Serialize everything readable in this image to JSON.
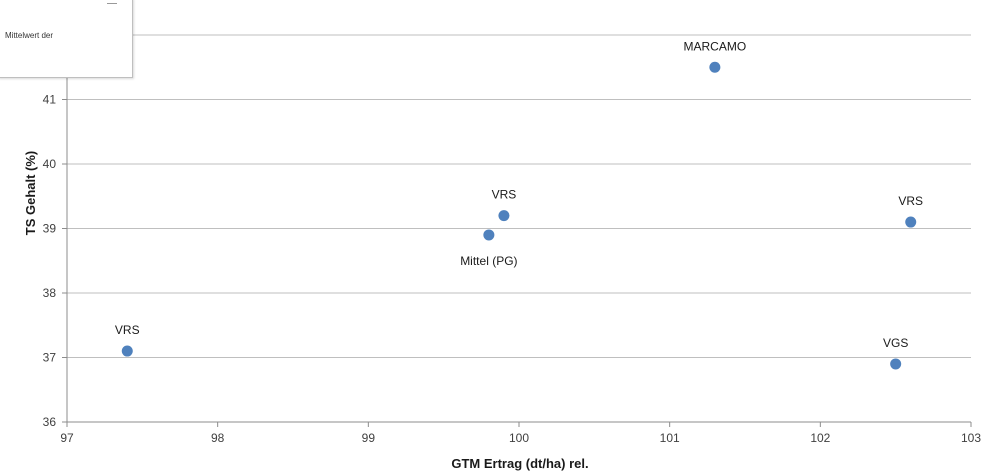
{
  "chart_data": {
    "type": "scatter",
    "xlabel": "GTM Ertrag (dt/ha) rel.",
    "ylabel": "TS Gehalt (%)",
    "xlim": [
      97,
      103
    ],
    "ylim": [
      36,
      42
    ],
    "x_ticks": [
      "97",
      "98",
      "99",
      "100",
      "101",
      "102",
      "103"
    ],
    "y_ticks": [
      "36",
      "37",
      "38",
      "39",
      "40",
      "41"
    ],
    "grid": "horizontal",
    "marker_color": "#4f81bd",
    "gridline_color": "#bfbfbf",
    "points": [
      {
        "label": "MARCAMO",
        "x": 101.3,
        "y": 41.5,
        "label_pos": "above"
      },
      {
        "label": "VRS",
        "x": 99.9,
        "y": 39.2,
        "label_pos": "above"
      },
      {
        "label": "Mittel (PG)",
        "x": 99.8,
        "y": 38.9,
        "label_pos": "below"
      },
      {
        "label": "VRS",
        "x": 102.6,
        "y": 39.1,
        "label_pos": "above"
      },
      {
        "label": "VRS",
        "x": 97.4,
        "y": 37.1,
        "label_pos": "above"
      },
      {
        "label": "VGS",
        "x": 102.5,
        "y": 36.9,
        "label_pos": "above"
      }
    ]
  },
  "legend": {
    "text": "Mittelwert der"
  }
}
